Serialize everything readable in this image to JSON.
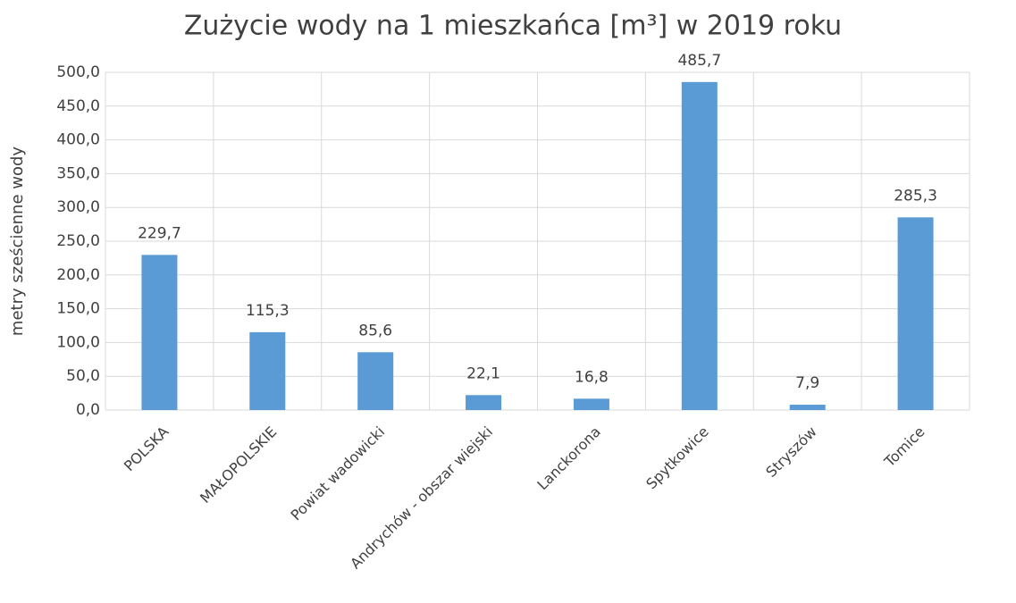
{
  "chart_data": {
    "type": "bar",
    "title": "Zużycie wody na 1 mieszkańca [m³] w 2019 roku",
    "y_label": "metry sześcienne wody",
    "categories": [
      "POLSKA",
      "MAŁOPOLSKIE",
      "Powiat wadowicki",
      "Andrychów - obszar wiejski",
      "Lanckorona",
      "Spytkowice",
      "Stryszów",
      "Tomice"
    ],
    "values": [
      229.7,
      115.3,
      85.6,
      22.1,
      16.8,
      485.7,
      7.9,
      285.3
    ],
    "value_labels": [
      "229,7",
      "115,3",
      "85,6",
      "22,1",
      "16,8",
      "485,7",
      "7,9",
      "285,3"
    ],
    "color": "#5b9bd5",
    "ylim": [
      0,
      500
    ],
    "yticks": [
      {
        "value": 0,
        "label": "0,0"
      },
      {
        "value": 50,
        "label": "50,0"
      },
      {
        "value": 100,
        "label": "100,0"
      },
      {
        "value": 150,
        "label": "150,0"
      },
      {
        "value": 200,
        "label": "200,0"
      },
      {
        "value": 250,
        "label": "250,0"
      },
      {
        "value": 300,
        "label": "300,0"
      },
      {
        "value": 350,
        "label": "350,0"
      },
      {
        "value": 400,
        "label": "400,0"
      },
      {
        "value": 450,
        "label": "450,0"
      },
      {
        "value": 500,
        "label": "500,0"
      }
    ],
    "grid": true
  }
}
